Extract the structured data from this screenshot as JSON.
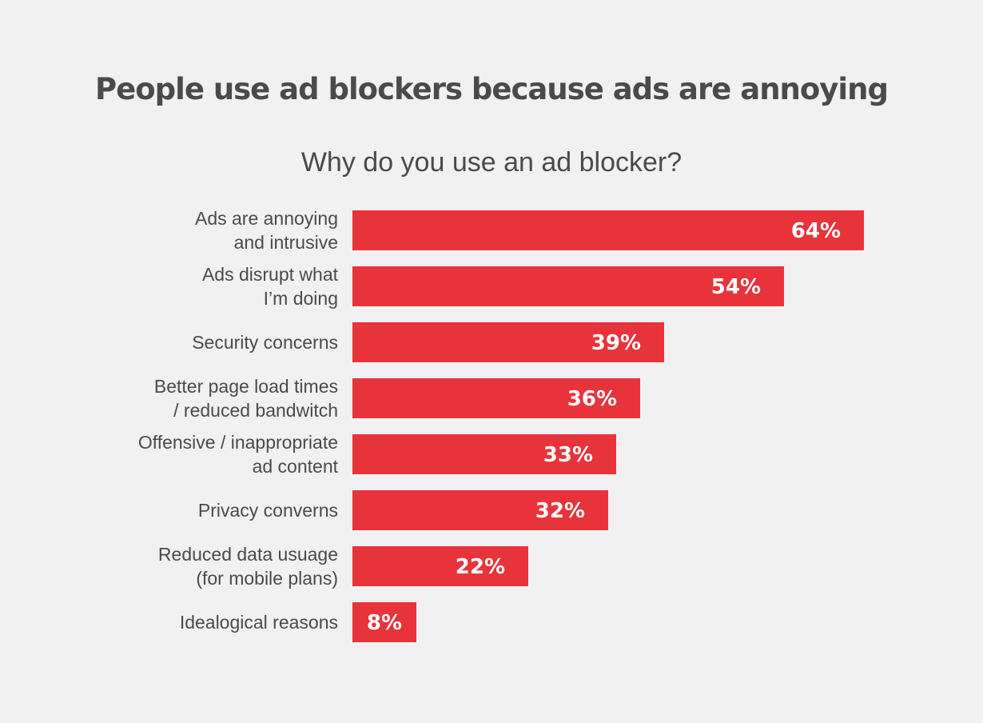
{
  "title": "People use ad blockers because ads are annoying",
  "subtitle": "Why do you use an ad blocker?",
  "colors": {
    "background": "#f1f1f1",
    "bar": "#e8333a",
    "text": "#4a4a4a",
    "value_text": "#ffffff"
  },
  "chart_data": {
    "type": "bar",
    "orientation": "horizontal",
    "title": "People use ad blockers because ads are annoying",
    "subtitle": "Why do you use an ad blocker?",
    "categories": [
      [
        "Ads are annoying",
        "and intrusive"
      ],
      [
        "Ads disrupt what",
        "I’m doing"
      ],
      [
        "Security concerns"
      ],
      [
        "Better page load times",
        "/ reduced bandwitch"
      ],
      [
        "Offensive / inappropriate",
        "ad content"
      ],
      [
        "Privacy converns"
      ],
      [
        "Reduced data usuage",
        "(for mobile plans)"
      ],
      [
        "Idealogical reasons"
      ]
    ],
    "values": [
      64,
      54,
      39,
      36,
      33,
      32,
      22,
      8
    ],
    "value_labels": [
      "64%",
      "54%",
      "39%",
      "36%",
      "33%",
      "32%",
      "22%",
      "8%"
    ],
    "unit": "%",
    "xlim": [
      0,
      100
    ],
    "grid": false,
    "legend": "none",
    "xlabel": "",
    "ylabel": ""
  }
}
